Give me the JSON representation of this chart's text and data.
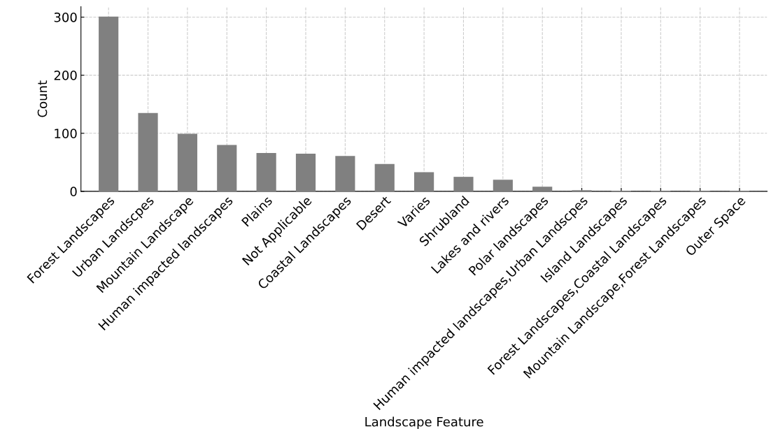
{
  "chart_data": {
    "type": "bar",
    "xlabel": "Landscape Feature",
    "ylabel": "Count",
    "categories": [
      "Forest Landscapes",
      "Urban Landscpes",
      "Mountain Landscape",
      "Human impacted landscapes",
      "Plains",
      "Not Applicable",
      "Coastal Landscapes",
      "Desert",
      "Varies",
      "Shrubland",
      "Lakes and rivers",
      "Polar landscapes",
      "Human impacted landscapes,Urban Landscpes",
      "Island Landscapes",
      "Forest Landscapes,Coastal Landscapes",
      "Mountain Landscape,Forest Landscapes",
      "Outer Space"
    ],
    "values": [
      301,
      135,
      99,
      80,
      66,
      65,
      61,
      47,
      33,
      25,
      20,
      8,
      2,
      1,
      1,
      1,
      1
    ],
    "color": "#808080",
    "ylim": [
      0,
      318
    ],
    "yticks": [
      0,
      100,
      200,
      300
    ],
    "grid": true
  }
}
